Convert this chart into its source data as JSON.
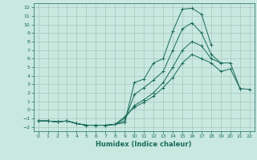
{
  "xlabel": "Humidex (Indice chaleur)",
  "background_color": "#c8e8e0",
  "grid_color": "#a8c8b8",
  "line_color": "#1a6b5a",
  "x_values": [
    0,
    1,
    2,
    3,
    4,
    5,
    6,
    7,
    8,
    9,
    10,
    11,
    12,
    13,
    14,
    15,
    16,
    17,
    18,
    19,
    20,
    21,
    22
  ],
  "series": [
    [
      -1.3,
      -1.3,
      -1.4,
      -1.3,
      -1.6,
      -1.8,
      -1.8,
      -1.8,
      -1.7,
      -1.5,
      3.2,
      3.6,
      5.5,
      6.0,
      9.2,
      11.8,
      11.9,
      11.2,
      7.6,
      null,
      null,
      null,
      null
    ],
    [
      -1.3,
      -1.3,
      -1.4,
      -1.3,
      -1.6,
      -1.8,
      -1.8,
      -1.8,
      -1.7,
      -1.3,
      1.8,
      2.6,
      3.5,
      4.5,
      7.0,
      9.5,
      10.2,
      9.0,
      6.5,
      5.5,
      null,
      null,
      null
    ],
    [
      -1.3,
      -1.3,
      -1.4,
      -1.3,
      -1.6,
      -1.8,
      -1.8,
      -1.8,
      -1.7,
      -1.0,
      0.5,
      1.2,
      2.0,
      3.2,
      5.0,
      7.0,
      8.0,
      7.5,
      6.0,
      5.5,
      5.5,
      2.5,
      null
    ],
    [
      -1.3,
      -1.3,
      -1.4,
      -1.3,
      -1.6,
      -1.8,
      -1.8,
      -1.8,
      -1.7,
      -0.8,
      0.3,
      0.9,
      1.6,
      2.6,
      3.8,
      5.5,
      6.5,
      6.0,
      5.5,
      4.5,
      4.8,
      2.5,
      2.4
    ]
  ],
  "xlim": [
    -0.5,
    22.5
  ],
  "ylim": [
    -2.5,
    12.5
  ],
  "yticks": [
    -2,
    -1,
    0,
    1,
    2,
    3,
    4,
    5,
    6,
    7,
    8,
    9,
    10,
    11,
    12
  ],
  "xticks": [
    0,
    1,
    2,
    3,
    4,
    5,
    6,
    7,
    8,
    9,
    10,
    11,
    12,
    13,
    14,
    15,
    16,
    17,
    18,
    19,
    20,
    21,
    22
  ]
}
